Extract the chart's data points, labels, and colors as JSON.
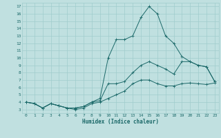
{
  "title": "",
  "xlabel": "Humidex (Indice chaleur)",
  "ylabel": "",
  "bg_color": "#c0e0e0",
  "grid_color": "#a0cccc",
  "line_color": "#1a6868",
  "xlim": [
    -0.5,
    23.5
  ],
  "ylim": [
    2.5,
    17.5
  ],
  "yticks": [
    3,
    4,
    5,
    6,
    7,
    8,
    9,
    10,
    11,
    12,
    13,
    14,
    15,
    16,
    17
  ],
  "xticks": [
    0,
    1,
    2,
    3,
    4,
    5,
    6,
    7,
    8,
    9,
    10,
    11,
    12,
    13,
    14,
    15,
    16,
    17,
    18,
    19,
    20,
    21,
    22,
    23
  ],
  "line1_x": [
    0,
    1,
    2,
    3,
    4,
    5,
    6,
    7,
    8,
    9,
    10,
    11,
    12,
    13,
    14,
    15,
    16,
    17,
    18,
    19,
    20,
    21,
    22,
    23
  ],
  "line1_y": [
    4.0,
    3.8,
    3.2,
    3.8,
    3.5,
    3.2,
    3.0,
    3.2,
    3.8,
    4.0,
    4.5,
    5.0,
    5.5,
    6.5,
    7.0,
    7.0,
    6.5,
    6.2,
    6.2,
    6.5,
    6.6,
    6.5,
    6.4,
    6.6
  ],
  "line2_x": [
    0,
    1,
    2,
    3,
    4,
    5,
    6,
    7,
    8,
    9,
    10,
    11,
    12,
    13,
    14,
    15,
    16,
    17,
    18,
    19,
    20,
    21,
    22,
    23
  ],
  "line2_y": [
    4.0,
    3.8,
    3.2,
    3.8,
    3.5,
    3.2,
    3.2,
    3.4,
    4.0,
    4.2,
    6.5,
    6.5,
    6.8,
    8.0,
    9.0,
    9.5,
    9.0,
    8.5,
    7.8,
    9.5,
    9.5,
    9.0,
    8.8,
    6.8
  ],
  "line3_x": [
    0,
    1,
    2,
    3,
    4,
    5,
    6,
    7,
    8,
    9,
    10,
    11,
    12,
    13,
    14,
    15,
    16,
    17,
    18,
    19,
    20,
    21,
    22,
    23
  ],
  "line3_y": [
    4.0,
    3.8,
    3.2,
    3.8,
    3.5,
    3.2,
    3.2,
    3.4,
    4.0,
    4.5,
    10.0,
    12.5,
    12.5,
    13.0,
    15.5,
    17.0,
    16.0,
    13.0,
    12.0,
    10.2,
    9.5,
    9.0,
    8.8,
    6.8
  ],
  "xlabel_fontsize": 5.5,
  "tick_fontsize": 4.5
}
